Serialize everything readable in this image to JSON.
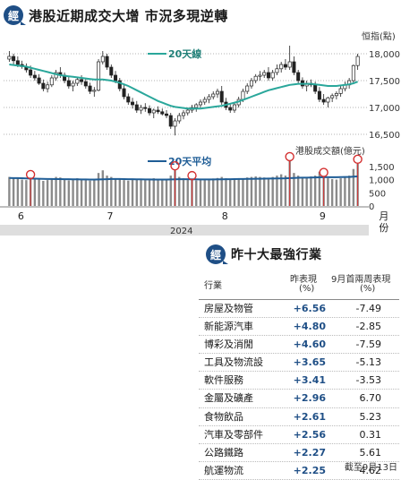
{
  "header": {
    "logo_text": "經",
    "title": "港股近期成交大增 市況多現逆轉"
  },
  "chart_data": {
    "type": "candlestick_with_volume",
    "price_axis_label": "恒指(點)",
    "price_ticks": [
      "18,000",
      "17,500",
      "17,000",
      "16,500"
    ],
    "price_tick_values": [
      18000,
      17500,
      17000,
      16500
    ],
    "price_ylim": [
      16400,
      18300
    ],
    "ma_label": "20天線",
    "volume_axis_label": "港股成交額(億元)",
    "volume_ticks": [
      "1,500",
      "1,000",
      "500",
      "0"
    ],
    "volume_tick_values": [
      1500,
      1000,
      500,
      0
    ],
    "volume_ylim": [
      0,
      1900
    ],
    "volume_avg_label": "20天平均",
    "x_month_labels": [
      "6",
      "7",
      "8",
      "9",
      "月"
    ],
    "x_month_index": [
      2,
      23,
      50,
      73,
      87
    ],
    "x_month_sublabel": "份",
    "year_label": "2024",
    "ohlc": [
      [
        17900,
        18050,
        17850,
        17950
      ],
      [
        17950,
        18000,
        17800,
        17870
      ],
      [
        17870,
        17950,
        17750,
        17800
      ],
      [
        17800,
        17870,
        17720,
        17760
      ],
      [
        17760,
        17820,
        17650,
        17700
      ],
      [
        17700,
        17780,
        17550,
        17600
      ],
      [
        17600,
        17680,
        17500,
        17550
      ],
      [
        17550,
        17620,
        17420,
        17450
      ],
      [
        17450,
        17520,
        17300,
        17350
      ],
      [
        17350,
        17480,
        17280,
        17420
      ],
      [
        17420,
        17600,
        17380,
        17550
      ],
      [
        17550,
        17700,
        17500,
        17650
      ],
      [
        17650,
        17750,
        17550,
        17600
      ],
      [
        17600,
        17650,
        17450,
        17500
      ],
      [
        17500,
        17580,
        17350,
        17400
      ],
      [
        17400,
        17500,
        17300,
        17450
      ],
      [
        17450,
        17560,
        17400,
        17520
      ],
      [
        17520,
        17600,
        17420,
        17480
      ],
      [
        17480,
        17540,
        17350,
        17400
      ],
      [
        17400,
        17460,
        17250,
        17300
      ],
      [
        17300,
        17380,
        17200,
        17320
      ],
      [
        17320,
        17900,
        17300,
        17850
      ],
      [
        17850,
        18050,
        17800,
        17950
      ],
      [
        17950,
        18000,
        17700,
        17750
      ],
      [
        17750,
        17800,
        17550,
        17600
      ],
      [
        17600,
        17680,
        17450,
        17500
      ],
      [
        17500,
        17550,
        17300,
        17350
      ],
      [
        17350,
        17420,
        17150,
        17200
      ],
      [
        17200,
        17260,
        17050,
        17100
      ],
      [
        17100,
        17180,
        16980,
        17050
      ],
      [
        17050,
        17120,
        16900,
        16950
      ],
      [
        16950,
        17050,
        16880,
        17000
      ],
      [
        17000,
        17080,
        16920,
        16980
      ],
      [
        16980,
        17040,
        16850,
        16900
      ],
      [
        16900,
        16980,
        16800,
        16950
      ],
      [
        16950,
        17020,
        16880,
        16920
      ],
      [
        16920,
        16980,
        16850,
        16880
      ],
      [
        16880,
        16950,
        16800,
        16850
      ],
      [
        16850,
        16900,
        16600,
        16650
      ],
      [
        16650,
        16800,
        16480,
        16750
      ],
      [
        16750,
        16900,
        16700,
        16850
      ],
      [
        16850,
        16950,
        16780,
        16900
      ],
      [
        16900,
        17000,
        16850,
        16950
      ],
      [
        16950,
        17050,
        16900,
        17000
      ],
      [
        17000,
        17080,
        16920,
        17050
      ],
      [
        17050,
        17150,
        17000,
        17100
      ],
      [
        17100,
        17200,
        17050,
        17150
      ],
      [
        17150,
        17250,
        17080,
        17200
      ],
      [
        17200,
        17300,
        17150,
        17250
      ],
      [
        17250,
        17350,
        17180,
        17300
      ],
      [
        17300,
        17400,
        17050,
        17100
      ],
      [
        17100,
        17180,
        16950,
        17000
      ],
      [
        17000,
        17080,
        16900,
        16950
      ],
      [
        16950,
        17100,
        16900,
        17050
      ],
      [
        17050,
        17200,
        17000,
        17150
      ],
      [
        17150,
        17350,
        17100,
        17300
      ],
      [
        17300,
        17450,
        17250,
        17400
      ],
      [
        17400,
        17550,
        17350,
        17500
      ],
      [
        17500,
        17620,
        17450,
        17580
      ],
      [
        17580,
        17680,
        17500,
        17600
      ],
      [
        17600,
        17700,
        17550,
        17650
      ],
      [
        17650,
        17750,
        17500,
        17550
      ],
      [
        17550,
        17700,
        17500,
        17650
      ],
      [
        17650,
        17800,
        17600,
        17720
      ],
      [
        17720,
        17850,
        17650,
        17800
      ],
      [
        17800,
        17900,
        17700,
        17750
      ],
      [
        17750,
        18150,
        17700,
        17850
      ],
      [
        17850,
        17950,
        17600,
        17650
      ],
      [
        17650,
        17700,
        17450,
        17500
      ],
      [
        17500,
        17560,
        17350,
        17400
      ],
      [
        17400,
        17500,
        17300,
        17450
      ],
      [
        17450,
        17520,
        17380,
        17420
      ],
      [
        17420,
        17480,
        17250,
        17300
      ],
      [
        17300,
        17380,
        17100,
        17150
      ],
      [
        17150,
        17250,
        17050,
        17100
      ],
      [
        17100,
        17200,
        17000,
        17180
      ],
      [
        17180,
        17260,
        17100,
        17220
      ],
      [
        17220,
        17300,
        17150,
        17260
      ],
      [
        17260,
        17400,
        17200,
        17350
      ],
      [
        17350,
        17480,
        17300,
        17420
      ],
      [
        17420,
        17550,
        17350,
        17500
      ],
      [
        17500,
        17800,
        17450,
        17780
      ],
      [
        17780,
        18000,
        17700,
        17950
      ]
    ],
    "ma20": [
      17800,
      17790,
      17780,
      17770,
      17760,
      17740,
      17720,
      17700,
      17680,
      17660,
      17640,
      17620,
      17600,
      17590,
      17580,
      17570,
      17560,
      17550,
      17540,
      17530,
      17520,
      17520,
      17520,
      17510,
      17500,
      17480,
      17460,
      17430,
      17400,
      17360,
      17320,
      17280,
      17240,
      17200,
      17160,
      17120,
      17090,
      17060,
      17030,
      17010,
      17000,
      16990,
      16980,
      16980,
      16980,
      16980,
      16990,
      17000,
      17010,
      17020,
      17030,
      17050,
      17070,
      17090,
      17110,
      17140,
      17170,
      17200,
      17230,
      17260,
      17290,
      17320,
      17340,
      17360,
      17380,
      17400,
      17420,
      17430,
      17440,
      17440,
      17440,
      17440,
      17430,
      17420,
      17410,
      17400,
      17400,
      17400,
      17410,
      17420,
      17430,
      17450,
      17480
    ],
    "volume": [
      1100,
      1080,
      1050,
      1000,
      980,
      1020,
      1060,
      1000,
      950,
      980,
      1050,
      1100,
      1080,
      1000,
      970,
      1000,
      1050,
      1020,
      980,
      960,
      1000,
      1250,
      1350,
      1150,
      1100,
      1050,
      1000,
      980,
      960,
      990,
      1020,
      1000,
      980,
      1000,
      1050,
      1020,
      990,
      1000,
      1150,
      1350,
      1100,
      1050,
      1000,
      980,
      970,
      990,
      1000,
      1020,
      1040,
      1060,
      1100,
      1050,
      1000,
      990,
      1020,
      1050,
      1080,
      1100,
      1120,
      1100,
      1080,
      1050,
      1100,
      1150,
      1200,
      1150,
      1700,
      1250,
      1150,
      1100,
      1050,
      1120,
      1150,
      1300,
      1100,
      1050,
      1020,
      1000,
      1050,
      1100,
      1150,
      1400,
      1600
    ],
    "volume_avg": [
      1060,
      1058,
      1055,
      1050,
      1045,
      1040,
      1036,
      1032,
      1028,
      1024,
      1020,
      1018,
      1016,
      1014,
      1012,
      1010,
      1008,
      1006,
      1004,
      1002,
      1000,
      1005,
      1010,
      1015,
      1020,
      1022,
      1020,
      1018,
      1015,
      1012,
      1010,
      1008,
      1006,
      1004,
      1002,
      1000,
      1000,
      1000,
      1005,
      1010,
      1015,
      1015,
      1012,
      1010,
      1008,
      1006,
      1005,
      1005,
      1006,
      1008,
      1010,
      1012,
      1015,
      1018,
      1020,
      1022,
      1025,
      1028,
      1030,
      1032,
      1035,
      1038,
      1040,
      1042,
      1045,
      1048,
      1055,
      1062,
      1068,
      1072,
      1075,
      1078,
      1080,
      1085,
      1088,
      1090,
      1090,
      1092,
      1095,
      1098,
      1100,
      1110,
      1120
    ],
    "volume_highlight_index": [
      5,
      39,
      43,
      66,
      74,
      82
    ]
  },
  "table": {
    "logo_text": "經",
    "title": "昨十大最強行業",
    "col_industry": "行業",
    "col_prev_l1": "昨表現",
    "col_prev_l2": "(%)",
    "col_month_l1": "9月首兩周表現",
    "col_month_l2": "(%)",
    "rows": [
      {
        "name": "房屋及物管",
        "prev": "+6.56",
        "month": "-7.49"
      },
      {
        "name": "新能源汽車",
        "prev": "+4.80",
        "month": "-2.85"
      },
      {
        "name": "博彩及消閒",
        "prev": "+4.60",
        "month": "-7.59"
      },
      {
        "name": "工具及物流設",
        "prev": "+3.65",
        "month": "-5.13"
      },
      {
        "name": "軟件服務",
        "prev": "+3.41",
        "month": "-3.53"
      },
      {
        "name": "金屬及礦產",
        "prev": "+2.96",
        "month": "6.70"
      },
      {
        "name": "食物飲品",
        "prev": "+2.61",
        "month": "5.23"
      },
      {
        "name": "汽車及零部件",
        "prev": "+2.56",
        "month": "0.31"
      },
      {
        "name": "公路鐵路",
        "prev": "+2.27",
        "month": "5.61"
      },
      {
        "name": "航運物流",
        "prev": "+2.25",
        "month": "4.62"
      }
    ],
    "footnote": "截至9月13日"
  }
}
